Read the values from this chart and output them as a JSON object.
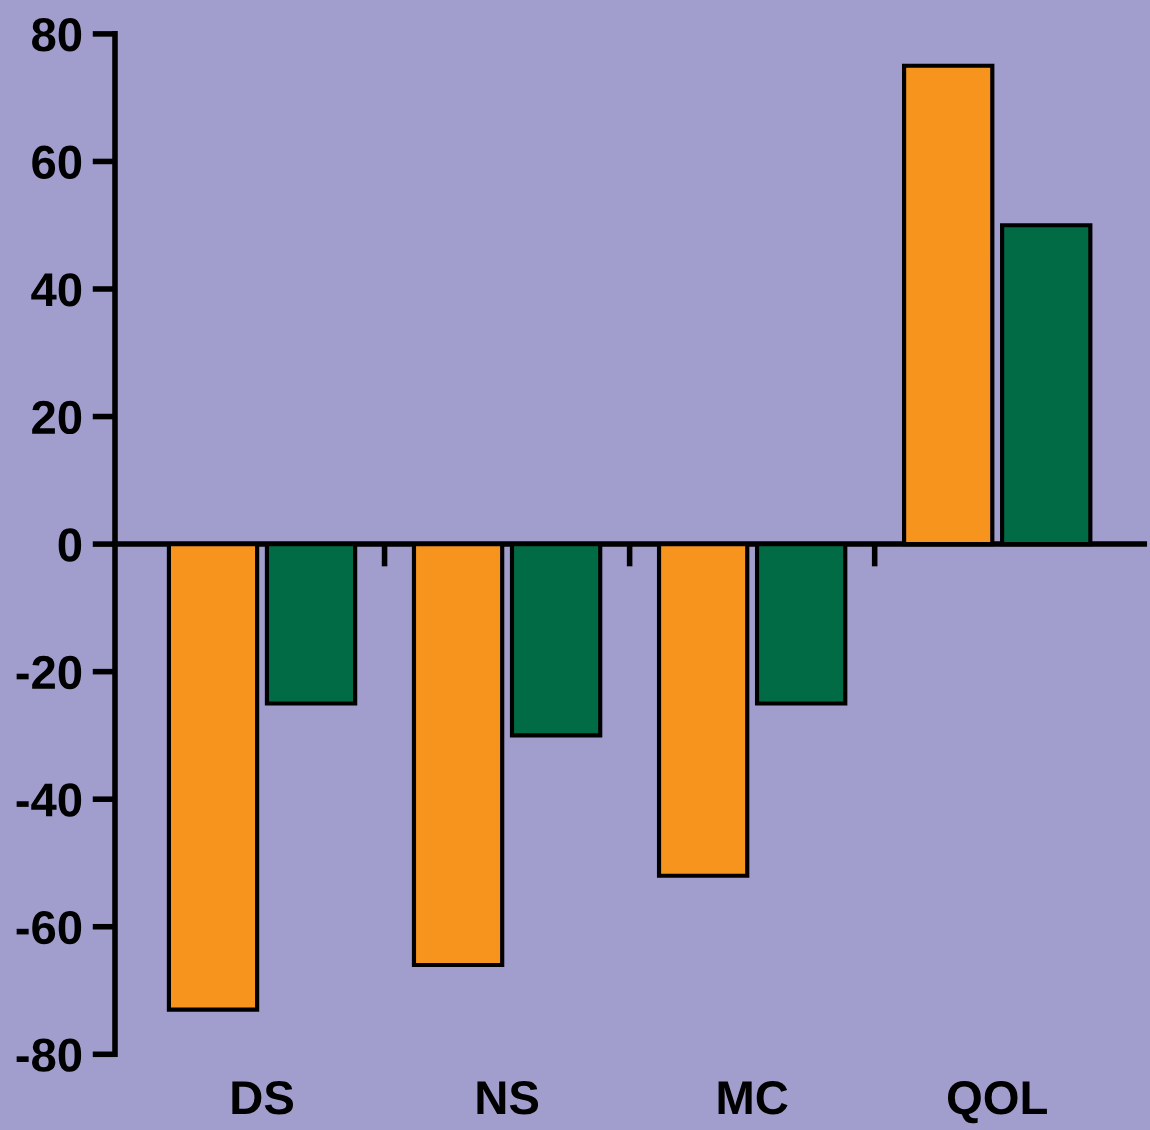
{
  "chart_data": {
    "type": "bar",
    "categories": [
      "DS",
      "NS",
      "MC",
      "QOL"
    ],
    "series": [
      {
        "color": "#f7941d",
        "values": [
          -73,
          -66,
          -52,
          75
        ]
      },
      {
        "color": "#006b45",
        "values": [
          -25,
          -30,
          -25,
          50
        ]
      }
    ],
    "ylim": [
      -80,
      80
    ],
    "yticks": [
      -80,
      -60,
      -40,
      -20,
      0,
      20,
      40,
      60,
      80
    ]
  }
}
